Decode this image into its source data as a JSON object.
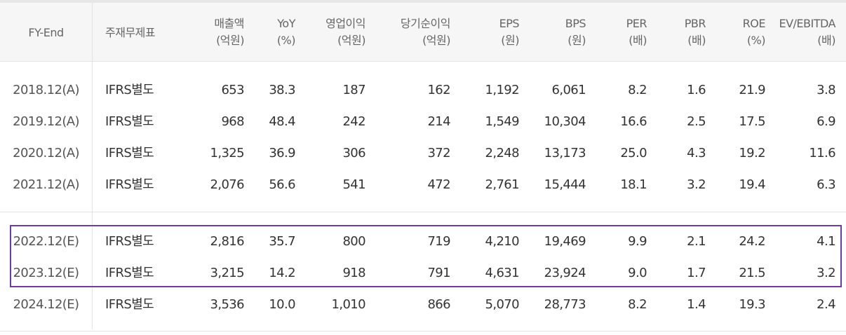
{
  "columns": [
    {
      "label": "FY-End",
      "unit": ""
    },
    {
      "label": "주재무제표",
      "unit": ""
    },
    {
      "label": "매출액",
      "unit": "(억원)"
    },
    {
      "label": "YoY",
      "unit": "(%)"
    },
    {
      "label": "영업이익",
      "unit": "(억원)"
    },
    {
      "label": "당기순이익",
      "unit": "(억원)"
    },
    {
      "label": "EPS",
      "unit": "(원)"
    },
    {
      "label": "BPS",
      "unit": "(원)"
    },
    {
      "label": "PER",
      "unit": "(배)"
    },
    {
      "label": "PBR",
      "unit": "(배)"
    },
    {
      "label": "ROE",
      "unit": "(%)"
    },
    {
      "label": "EV/EBITDA",
      "unit": "(배)"
    }
  ],
  "rows": [
    [
      "2018.12(A)",
      "IFRS별도",
      "653",
      "38.3",
      "187",
      "162",
      "1,192",
      "6,061",
      "8.2",
      "1.6",
      "21.9",
      "3.8"
    ],
    [
      "2019.12(A)",
      "IFRS별도",
      "968",
      "48.4",
      "242",
      "214",
      "1,549",
      "10,304",
      "16.6",
      "2.5",
      "17.5",
      "6.9"
    ],
    [
      "2020.12(A)",
      "IFRS별도",
      "1,325",
      "36.9",
      "306",
      "372",
      "2,248",
      "13,173",
      "25.0",
      "4.3",
      "19.2",
      "11.6"
    ],
    [
      "2021.12(A)",
      "IFRS별도",
      "2,076",
      "56.6",
      "541",
      "472",
      "2,761",
      "15,444",
      "18.1",
      "3.2",
      "19.4",
      "6.3"
    ],
    [
      "2022.12(E)",
      "IFRS별도",
      "2,816",
      "35.7",
      "800",
      "719",
      "4,210",
      "19,469",
      "9.9",
      "2.1",
      "24.2",
      "4.1"
    ],
    [
      "2023.12(E)",
      "IFRS별도",
      "3,215",
      "14.2",
      "918",
      "791",
      "4,631",
      "23,924",
      "9.0",
      "1.7",
      "21.5",
      "3.2"
    ],
    [
      "2024.12(E)",
      "IFRS별도",
      "3,536",
      "10.0",
      "1,010",
      "866",
      "5,070",
      "28,773",
      "8.2",
      "1.4",
      "19.3",
      "2.4"
    ]
  ],
  "highlight_color": "#6b3fa0"
}
